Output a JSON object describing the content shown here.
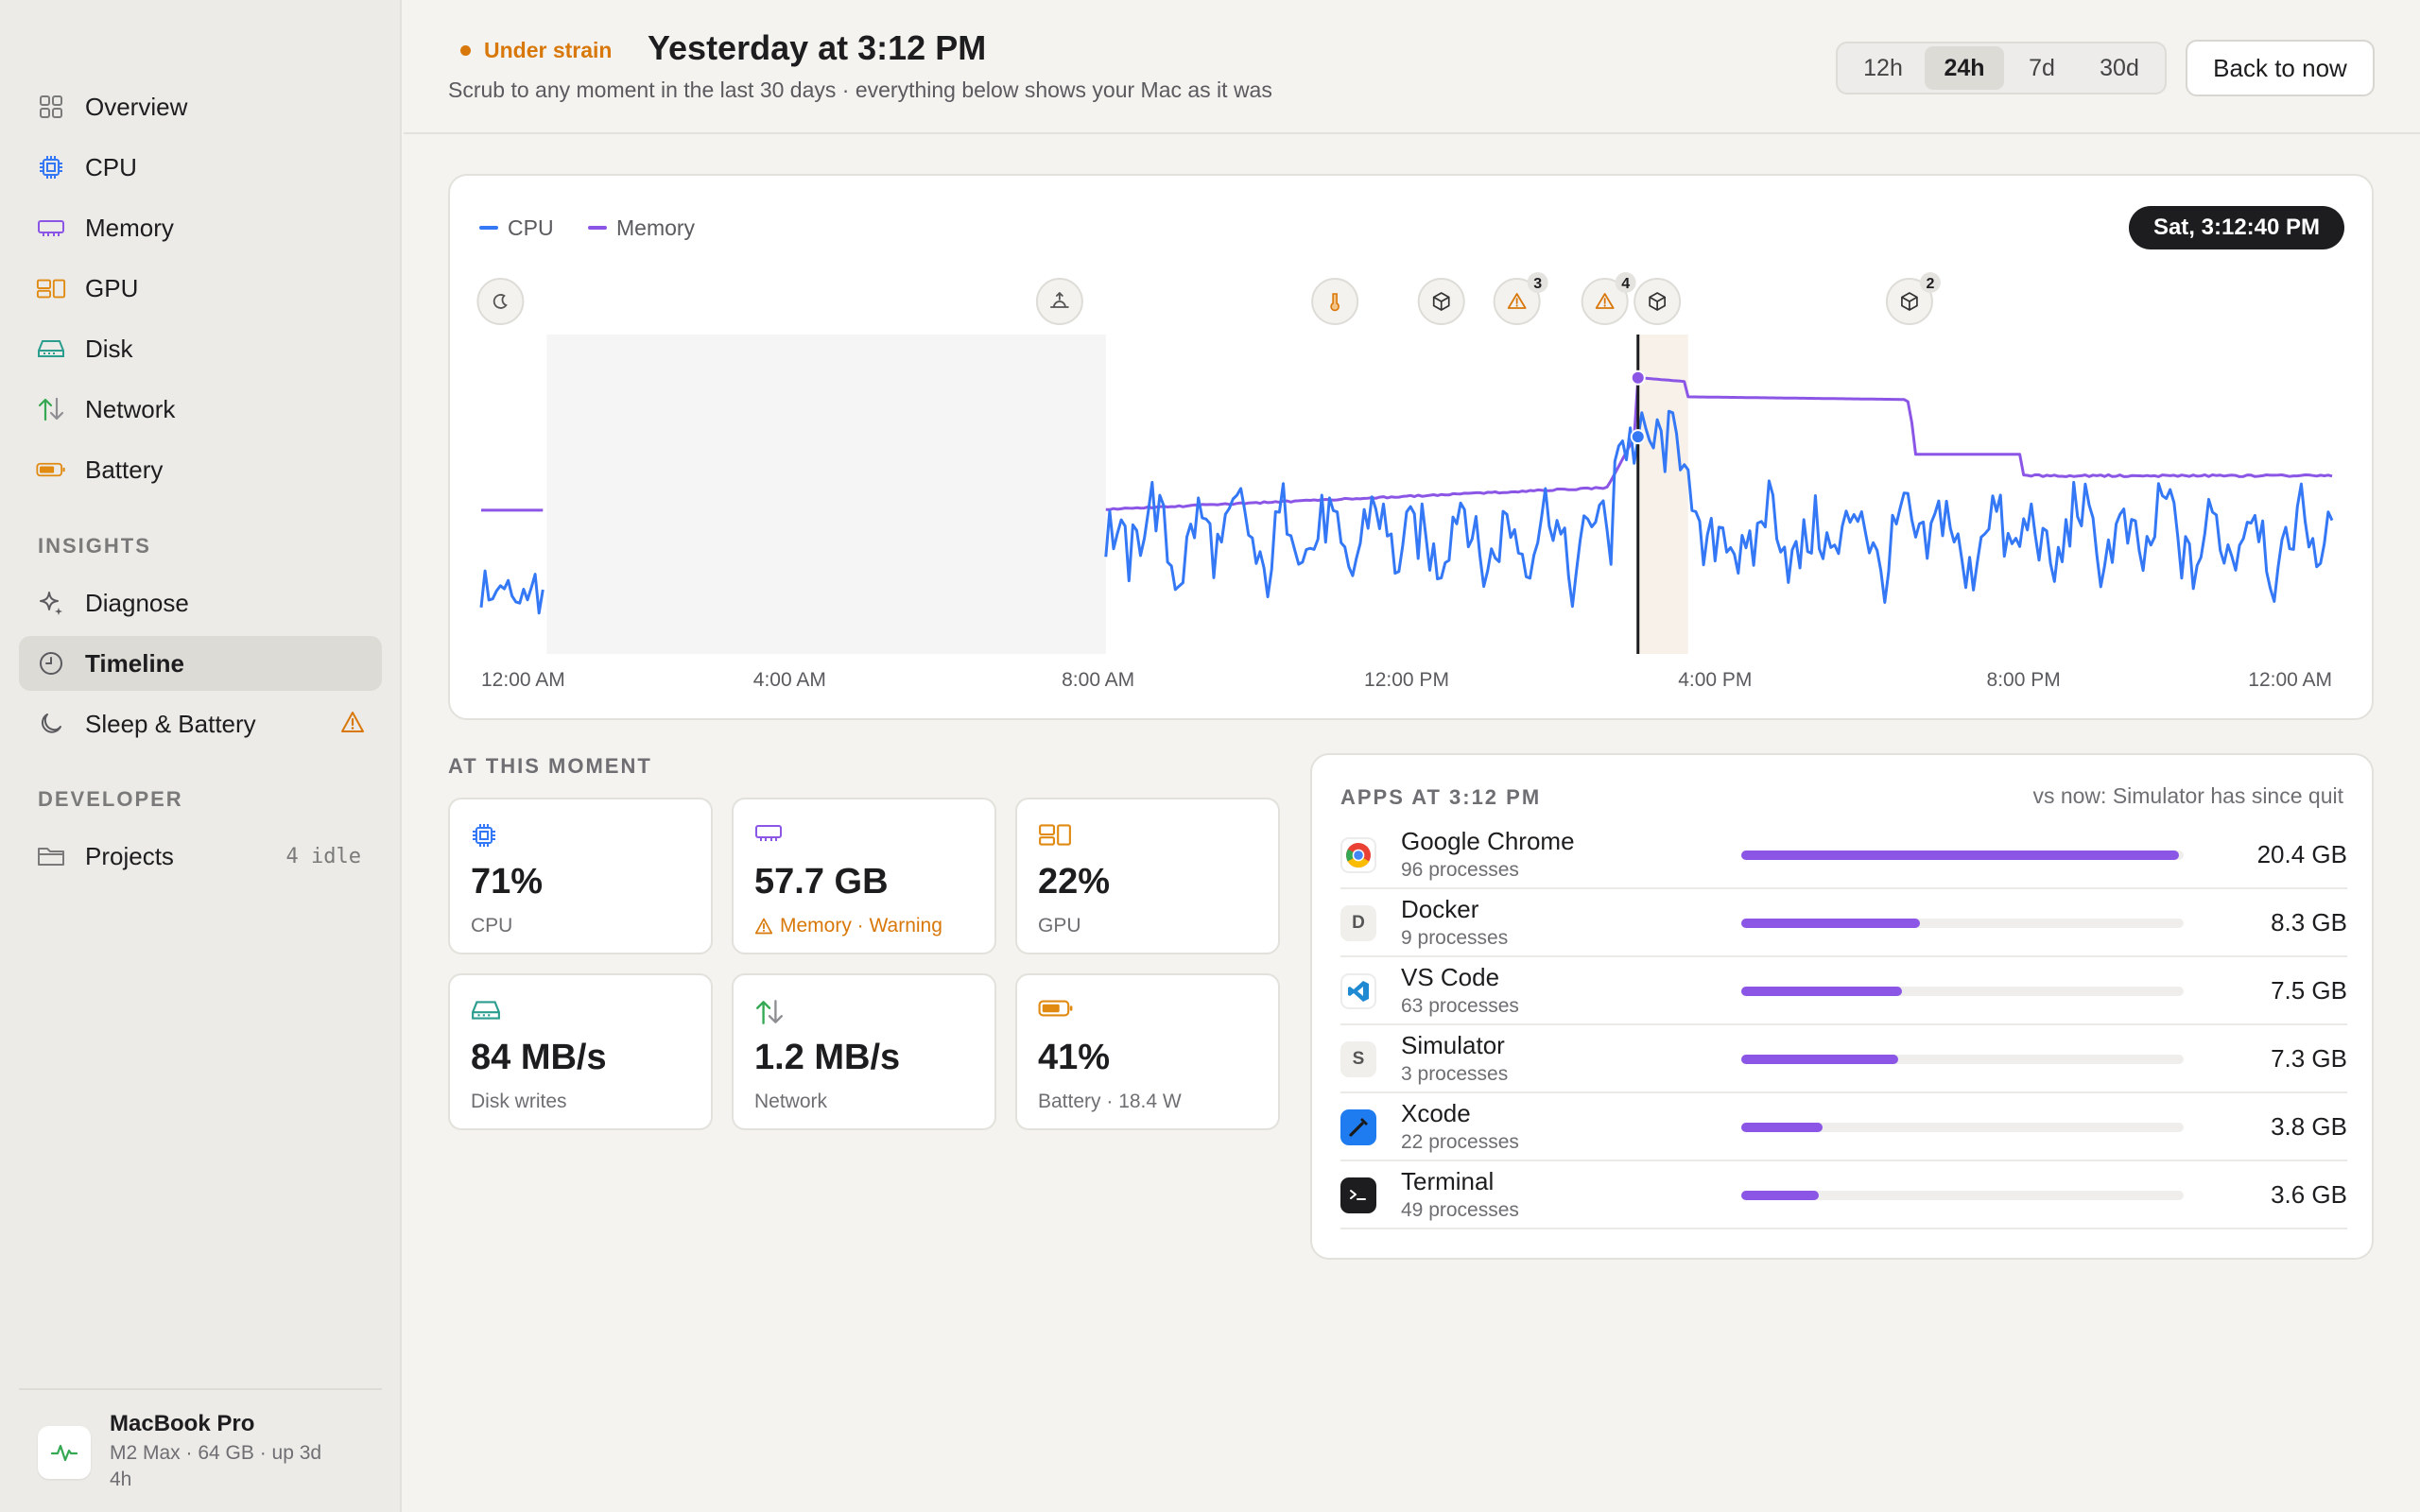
{
  "colors": {
    "cpu": "#3478f6",
    "memory": "#8b55e6",
    "gpu": "#e08a12",
    "disk": "#2a9d8f",
    "network": "#34a853",
    "warning": "#d9780a"
  },
  "sidebar": {
    "items": [
      {
        "label": "Overview",
        "icon": "overview-grid-icon"
      },
      {
        "label": "CPU",
        "icon": "cpu-chip-icon"
      },
      {
        "label": "Memory",
        "icon": "memory-module-icon"
      },
      {
        "label": "GPU",
        "icon": "gpu-icon"
      },
      {
        "label": "Disk",
        "icon": "disk-drive-icon"
      },
      {
        "label": "Network",
        "icon": "network-arrows-icon"
      },
      {
        "label": "Battery",
        "icon": "battery-icon"
      }
    ],
    "insights_heading": "INSIGHTS",
    "insights": [
      {
        "label": "Diagnose",
        "icon": "sparkle-icon"
      },
      {
        "label": "Timeline",
        "icon": "clock-icon",
        "active": true
      },
      {
        "label": "Sleep & Battery",
        "icon": "moon-icon",
        "badge_icon": "warning-icon"
      }
    ],
    "developer_heading": "DEVELOPER",
    "developer": [
      {
        "label": "Projects",
        "icon": "folder-icon",
        "trail": "4 idle"
      }
    ],
    "device": {
      "name": "MacBook Pro",
      "spec": "M2 Max · 64 GB · up 3d 4h",
      "icon": "pulse-icon"
    }
  },
  "header": {
    "status": "Under strain",
    "title": "Yesterday at 3:12 PM",
    "subtitle": "Scrub to any moment in the last 30 days · everything below shows your Mac as it was",
    "ranges": [
      "12h",
      "24h",
      "7d",
      "30d"
    ],
    "active_range": "24h",
    "back_label": "Back to now"
  },
  "timeline": {
    "legend": [
      "CPU",
      "Memory"
    ],
    "selected_time": "Sat, 3:12:40 PM",
    "x_ticks": [
      "12:00 AM",
      "4:00 AM",
      "8:00 AM",
      "12:00 PM",
      "4:00 PM",
      "8:00 PM",
      "12:00 AM"
    ],
    "events": [
      {
        "hour": 0.25,
        "icon": "sleep-moon-icon"
      },
      {
        "hour": 7.5,
        "icon": "wake-sunrise-icon"
      },
      {
        "hour": 11.07,
        "icon": "thermal-icon"
      },
      {
        "hour": 12.45,
        "icon": "package-icon"
      },
      {
        "hour": 13.43,
        "icon": "warning-icon",
        "count": "3"
      },
      {
        "hour": 14.57,
        "icon": "warning-icon",
        "count": "4"
      },
      {
        "hour": 15.25,
        "icon": "package-icon"
      },
      {
        "hour": 18.52,
        "icon": "package-icon",
        "count": "2"
      }
    ],
    "sleep_range_hours": [
      0.85,
      8.1
    ],
    "highlight_range_hours": [
      15.0,
      15.65
    ],
    "cursor_hour": 15.0
  },
  "moment": {
    "title": "AT THIS MOMENT",
    "metrics": [
      {
        "value": "71%",
        "label": "CPU",
        "icon": "cpu-chip-icon"
      },
      {
        "value": "57.7 GB",
        "label": "Memory · Warning",
        "icon": "memory-module-icon",
        "warn": true
      },
      {
        "value": "22%",
        "label": "GPU",
        "icon": "gpu-icon"
      },
      {
        "value": "84 MB/s",
        "label": "Disk writes",
        "icon": "disk-drive-icon"
      },
      {
        "value": "1.2 MB/s",
        "label": "Network",
        "icon": "network-arrows-icon"
      },
      {
        "value": "41%",
        "label": "Battery · 18.4 W",
        "icon": "battery-icon"
      }
    ]
  },
  "apps": {
    "title": "APPS AT 3:12 PM",
    "compare": "vs now: Simulator has since quit",
    "rows": [
      {
        "name": "Google Chrome",
        "procs": "96 processes",
        "size": "20.4 GB",
        "gb": 20.4,
        "icon": "chrome-icon"
      },
      {
        "name": "Docker",
        "procs": "9 processes",
        "size": "8.3 GB",
        "gb": 8.3,
        "icon": "docker-letter-icon",
        "letter": "D"
      },
      {
        "name": "VS Code",
        "procs": "63 processes",
        "size": "7.5 GB",
        "gb": 7.5,
        "icon": "vscode-icon"
      },
      {
        "name": "Simulator",
        "procs": "3 processes",
        "size": "7.3 GB",
        "gb": 7.3,
        "icon": "simulator-letter-icon",
        "letter": "S"
      },
      {
        "name": "Xcode",
        "procs": "22 processes",
        "size": "3.8 GB",
        "gb": 3.8,
        "icon": "xcode-icon"
      },
      {
        "name": "Terminal",
        "procs": "49 processes",
        "size": "3.6 GB",
        "gb": 3.6,
        "icon": "terminal-icon"
      }
    ]
  }
}
